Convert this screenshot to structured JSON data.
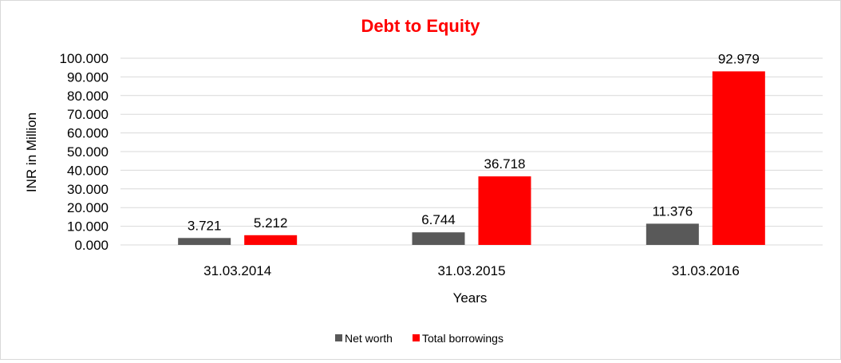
{
  "chart_data": {
    "type": "bar",
    "title": "Debt to Equity",
    "xlabel": "Years",
    "ylabel": "INR in Million",
    "categories": [
      "31.03.2014",
      "31.03.2015",
      "31.03.2016"
    ],
    "series": [
      {
        "name": "Net worth",
        "values": [
          3.721,
          6.744,
          11.376
        ],
        "labels": [
          "3.721",
          "6.744",
          "11.376"
        ],
        "color": "#595959"
      },
      {
        "name": "Total borrowings",
        "values": [
          5.212,
          36.718,
          92.979
        ],
        "labels": [
          "5.212",
          "36.718",
          "92.979"
        ],
        "color": "#ff0000"
      }
    ],
    "ylim": [
      0,
      100
    ],
    "yticks": [
      0,
      10,
      20,
      30,
      40,
      50,
      60,
      70,
      80,
      90,
      100
    ],
    "ytick_labels": [
      "0.000",
      "10.000",
      "20.000",
      "30.000",
      "40.000",
      "50.000",
      "60.000",
      "70.000",
      "80.000",
      "90.000",
      "100.000"
    ],
    "grid": true,
    "legend": "bottom",
    "title_color": "#ff0000",
    "grid_color": "#d9d9d9"
  }
}
